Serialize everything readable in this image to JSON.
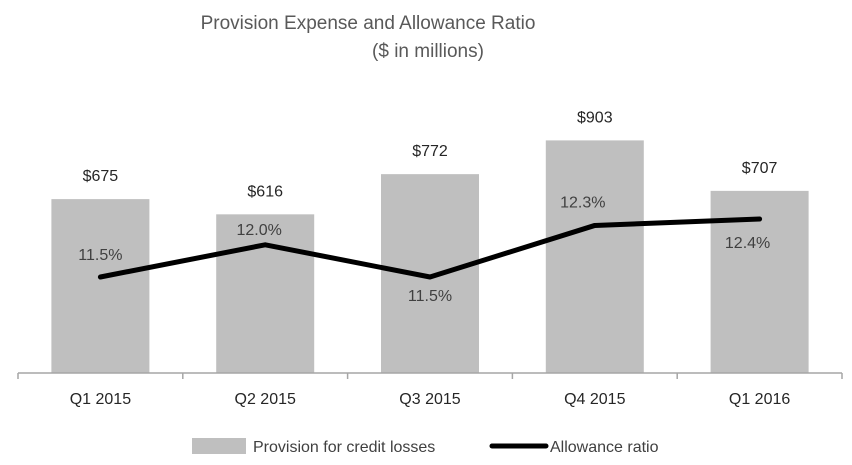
{
  "chart_data": {
    "type": "bar",
    "title": "Provision Expense and Allowance Ratio",
    "subtitle": "($ in millions)",
    "categories": [
      "Q1 2015",
      "Q2 2015",
      "Q3 2015",
      "Q4 2015",
      "Q1 2016"
    ],
    "series": [
      {
        "name": "Provision for credit losses",
        "type": "bar",
        "values": [
          675,
          616,
          772,
          903,
          707
        ],
        "labels": [
          "$675",
          "$616",
          "$772",
          "$903",
          "$707"
        ],
        "color": "#bfbfbf"
      },
      {
        "name": "Allowance ratio",
        "type": "line",
        "values": [
          11.5,
          12.0,
          11.5,
          12.3,
          12.4
        ],
        "labels": [
          "11.5%",
          "12.0%",
          "11.5%",
          "12.3%",
          "12.4%"
        ],
        "color": "#000000"
      }
    ],
    "bar_ylim": [
      0,
      1000
    ],
    "line_ylim": [
      9.5,
      13.0
    ],
    "grid": false,
    "legend_position": "bottom"
  }
}
